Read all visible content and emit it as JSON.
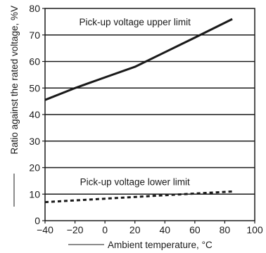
{
  "chart_data": {
    "type": "line",
    "xlabel": "Ambient temperature, °C",
    "ylabel": "Ratio against the rated voltage, %V",
    "xlim": [
      -40,
      100
    ],
    "ylim": [
      0,
      80
    ],
    "xticks": [
      "−40",
      "−20",
      "0",
      "20",
      "40",
      "60",
      "80",
      "100"
    ],
    "yticks": [
      "0",
      "10",
      "20",
      "30",
      "40",
      "50",
      "60",
      "70",
      "80"
    ],
    "grid": "horizontal",
    "series": [
      {
        "name": "Pick-up voltage upper limit",
        "style": "solid",
        "x": [
          -40,
          -20,
          0,
          20,
          40,
          60,
          85
        ],
        "y": [
          45.5,
          50,
          54,
          58,
          63.5,
          69,
          76
        ]
      },
      {
        "name": "Pick-up voltage lower limit",
        "style": "dashed",
        "x": [
          -40,
          0,
          40,
          85
        ],
        "y": [
          7,
          8.3,
          9.6,
          11
        ]
      }
    ],
    "annotations": [
      {
        "text": "Pick-up voltage upper limit",
        "x": 20,
        "y": 73.7
      },
      {
        "text": "Pick-up voltage lower limit",
        "x": 20,
        "y": 13.4
      }
    ]
  }
}
